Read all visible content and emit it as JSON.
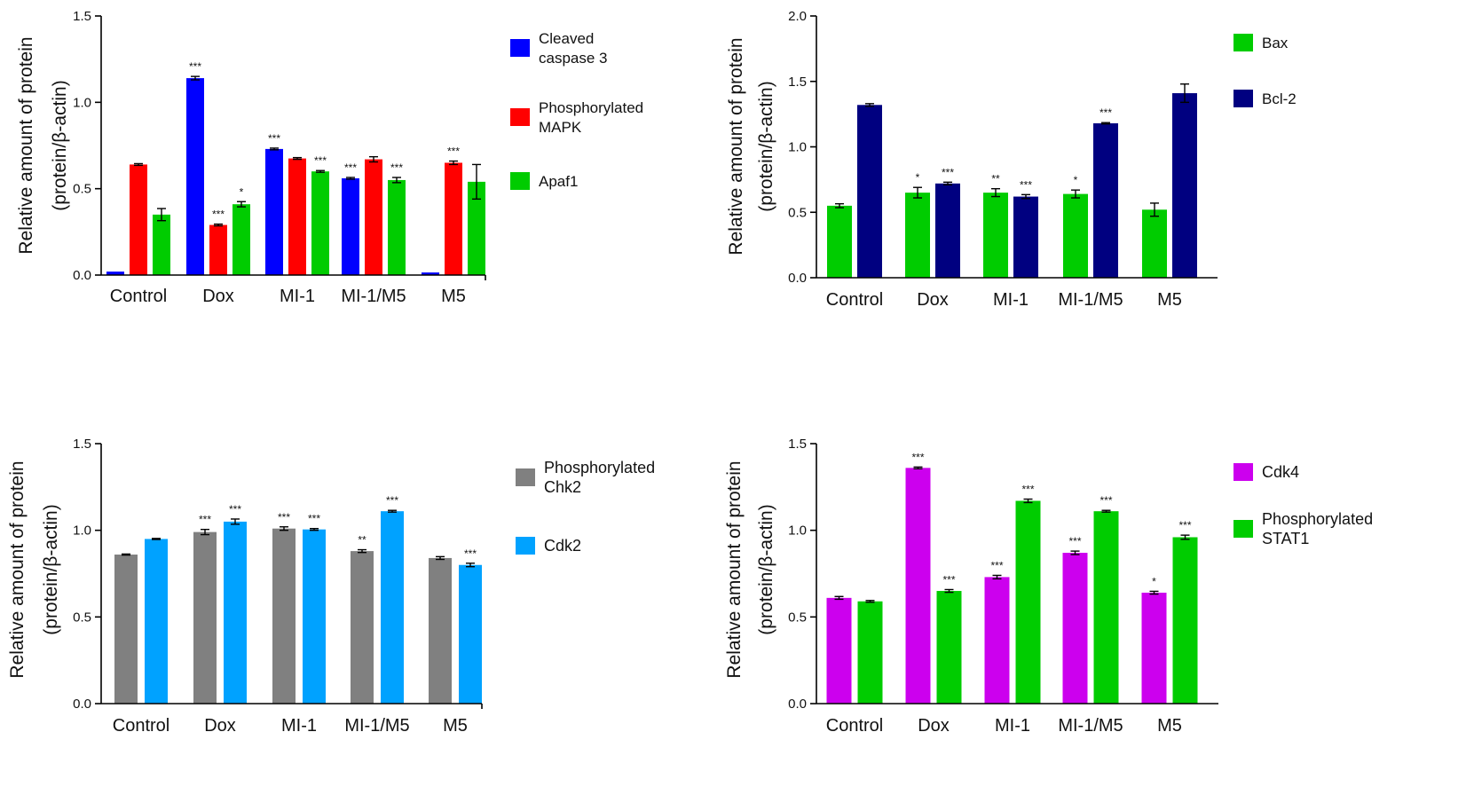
{
  "chart_data": [
    {
      "type": "bar",
      "categories": [
        "Control",
        "Dox",
        "MI-1",
        "MI-1/M5",
        "M5"
      ],
      "ylabel_line1": "Relative amount of protein",
      "ylabel_line2": "(protein/β-actin)",
      "ylim": [
        0,
        1.5
      ],
      "yticks": [
        0.0,
        0.5,
        1.0,
        1.5
      ],
      "ytick_labels": [
        "0.0",
        "0.5",
        "1.0",
        "1.5"
      ],
      "series": [
        {
          "name": "Cleaved caspase 3",
          "legend_lines": [
            "Cleaved",
            "caspase 3"
          ],
          "color": "#0000ff",
          "values": [
            0.02,
            1.14,
            0.73,
            0.56,
            0.015
          ],
          "errors": [
            0,
            0.01,
            0.005,
            0.005,
            0
          ],
          "stars": [
            "",
            "***",
            "***",
            "***",
            ""
          ]
        },
        {
          "name": "Phosphorylated MAPK",
          "legend_lines": [
            "Phosphorylated",
            "MAPK"
          ],
          "color": "#ff0000",
          "values": [
            0.64,
            0.29,
            0.675,
            0.67,
            0.65
          ],
          "errors": [
            0.005,
            0.005,
            0.005,
            0.015,
            0.01
          ],
          "stars": [
            "",
            "***",
            "",
            "",
            "***"
          ]
        },
        {
          "name": "Apaf1",
          "legend_lines": [
            "Apaf1"
          ],
          "color": "#00cc00",
          "values": [
            0.35,
            0.41,
            0.6,
            0.55,
            0.54
          ],
          "errors": [
            0.035,
            0.015,
            0.005,
            0.015,
            0.1
          ],
          "stars": [
            "",
            "*",
            "***",
            "***",
            ""
          ]
        }
      ]
    },
    {
      "type": "bar",
      "categories": [
        "Control",
        "Dox",
        "MI-1",
        "MI-1/M5",
        "M5"
      ],
      "ylabel_line1": "Relative amount of protein",
      "ylabel_line2": "(protein/β-actin)",
      "ylim": [
        0,
        2.0
      ],
      "yticks": [
        0.0,
        0.5,
        1.0,
        1.5,
        2.0
      ],
      "ytick_labels": [
        "0.0",
        "0.5",
        "1.0",
        "1.5",
        "2.0"
      ],
      "series": [
        {
          "name": "Bax",
          "legend_lines": [
            "Bax"
          ],
          "color": "#00cc00",
          "values": [
            0.55,
            0.65,
            0.65,
            0.64,
            0.52
          ],
          "errors": [
            0.015,
            0.04,
            0.03,
            0.03,
            0.05
          ],
          "stars": [
            "",
            "*",
            "**",
            "*",
            ""
          ]
        },
        {
          "name": "Bcl-2",
          "legend_lines": [
            "Bcl-2"
          ],
          "color": "#000080",
          "values": [
            1.32,
            0.72,
            0.62,
            1.18,
            1.41
          ],
          "errors": [
            0.01,
            0.01,
            0.015,
            0.005,
            0.07
          ],
          "stars": [
            "",
            "***",
            "***",
            "***",
            ""
          ]
        }
      ]
    },
    {
      "type": "bar",
      "categories": [
        "Control",
        "Dox",
        "MI-1",
        "MI-1/M5",
        "M5"
      ],
      "ylabel_line1": "Relative amount of protein",
      "ylabel_line2": "(protein/β-actin)",
      "ylim": [
        0,
        1.5
      ],
      "yticks": [
        0.0,
        0.5,
        1.0,
        1.5
      ],
      "ytick_labels": [
        "0.0",
        "0.5",
        "1.0",
        "1.5"
      ],
      "series": [
        {
          "name": "Phosphorylated Chk2",
          "legend_lines": [
            "Phosphorylated",
            "Chk2"
          ],
          "color": "#808080",
          "values": [
            0.86,
            0.99,
            1.01,
            0.88,
            0.84
          ],
          "errors": [
            0.003,
            0.015,
            0.01,
            0.008,
            0.008
          ],
          "stars": [
            "",
            "***",
            "***",
            "**",
            ""
          ]
        },
        {
          "name": "Cdk2",
          "legend_lines": [
            "Cdk2"
          ],
          "color": "#00a2ff",
          "values": [
            0.95,
            1.05,
            1.005,
            1.11,
            0.8
          ],
          "errors": [
            0.003,
            0.015,
            0.005,
            0.005,
            0.01
          ],
          "stars": [
            "",
            "***",
            "***",
            "***",
            "***"
          ]
        }
      ]
    },
    {
      "type": "bar",
      "categories": [
        "Control",
        "Dox",
        "MI-1",
        "MI-1/M5",
        "M5"
      ],
      "ylabel_line1": "Relative amount of protein",
      "ylabel_line2": "(protein/β-actin)",
      "ylim": [
        0,
        1.5
      ],
      "yticks": [
        0.0,
        0.5,
        1.0,
        1.5
      ],
      "ytick_labels": [
        "0.0",
        "0.5",
        "1.0",
        "1.5"
      ],
      "series": [
        {
          "name": "Cdk4",
          "legend_lines": [
            "Cdk4"
          ],
          "color": "#cc00ee",
          "values": [
            0.61,
            1.36,
            0.73,
            0.87,
            0.64
          ],
          "errors": [
            0.008,
            0.005,
            0.01,
            0.01,
            0.008
          ],
          "stars": [
            "",
            "***",
            "***",
            "***",
            "*"
          ]
        },
        {
          "name": "Phosphorylated STAT1",
          "legend_lines": [
            "Phosphorylated",
            "STAT1"
          ],
          "color": "#00cc00",
          "values": [
            0.59,
            0.65,
            1.17,
            1.11,
            0.96
          ],
          "errors": [
            0.005,
            0.008,
            0.01,
            0.005,
            0.012
          ],
          "stars": [
            "",
            "***",
            "***",
            "***",
            "***"
          ]
        }
      ]
    }
  ]
}
